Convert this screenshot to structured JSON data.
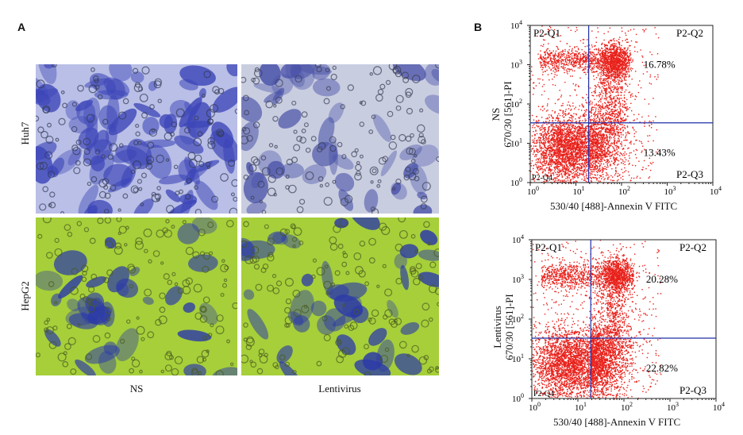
{
  "panel_a": {
    "letter": "A",
    "row_labels": [
      "Huh7",
      "HepG2"
    ],
    "col_labels": [
      "NS",
      "Lentivirus"
    ]
  },
  "panel_b": {
    "letter": "B",
    "plots": [
      {
        "sample_label": "NS",
        "y_axis_label": "670/30 [561]-PI",
        "x_axis_label": "530/40 [488]-Annexin V FITC",
        "quadrants": {
          "q1": "P2-Q1",
          "q2": "P2-Q2",
          "q3": "P2-Q3",
          "q4": "P2-Q4"
        },
        "pct_q2": "16.78%",
        "pct_q3": "13.43%"
      },
      {
        "sample_label": "Lentivirus",
        "y_axis_label": "670/30 [561]-PI",
        "x_axis_label": "530/40 [488]-Annexin V FITC",
        "quadrants": {
          "q1": "P2-Q1",
          "q2": "P2-Q2",
          "q3": "P2-Q3",
          "q4": "P2-Q4"
        },
        "pct_q2": "20.28%",
        "pct_q3": "22.82%"
      }
    ]
  },
  "colors": {
    "dots": "#e8201a",
    "gate_lines": "#1f2fa8",
    "huh7_bg": "#b9bfe6",
    "huh7_stain": "#3d46b8",
    "hepg2_bg": "#a6cf3a",
    "hepg2_stain": "#2c3aa8"
  }
}
